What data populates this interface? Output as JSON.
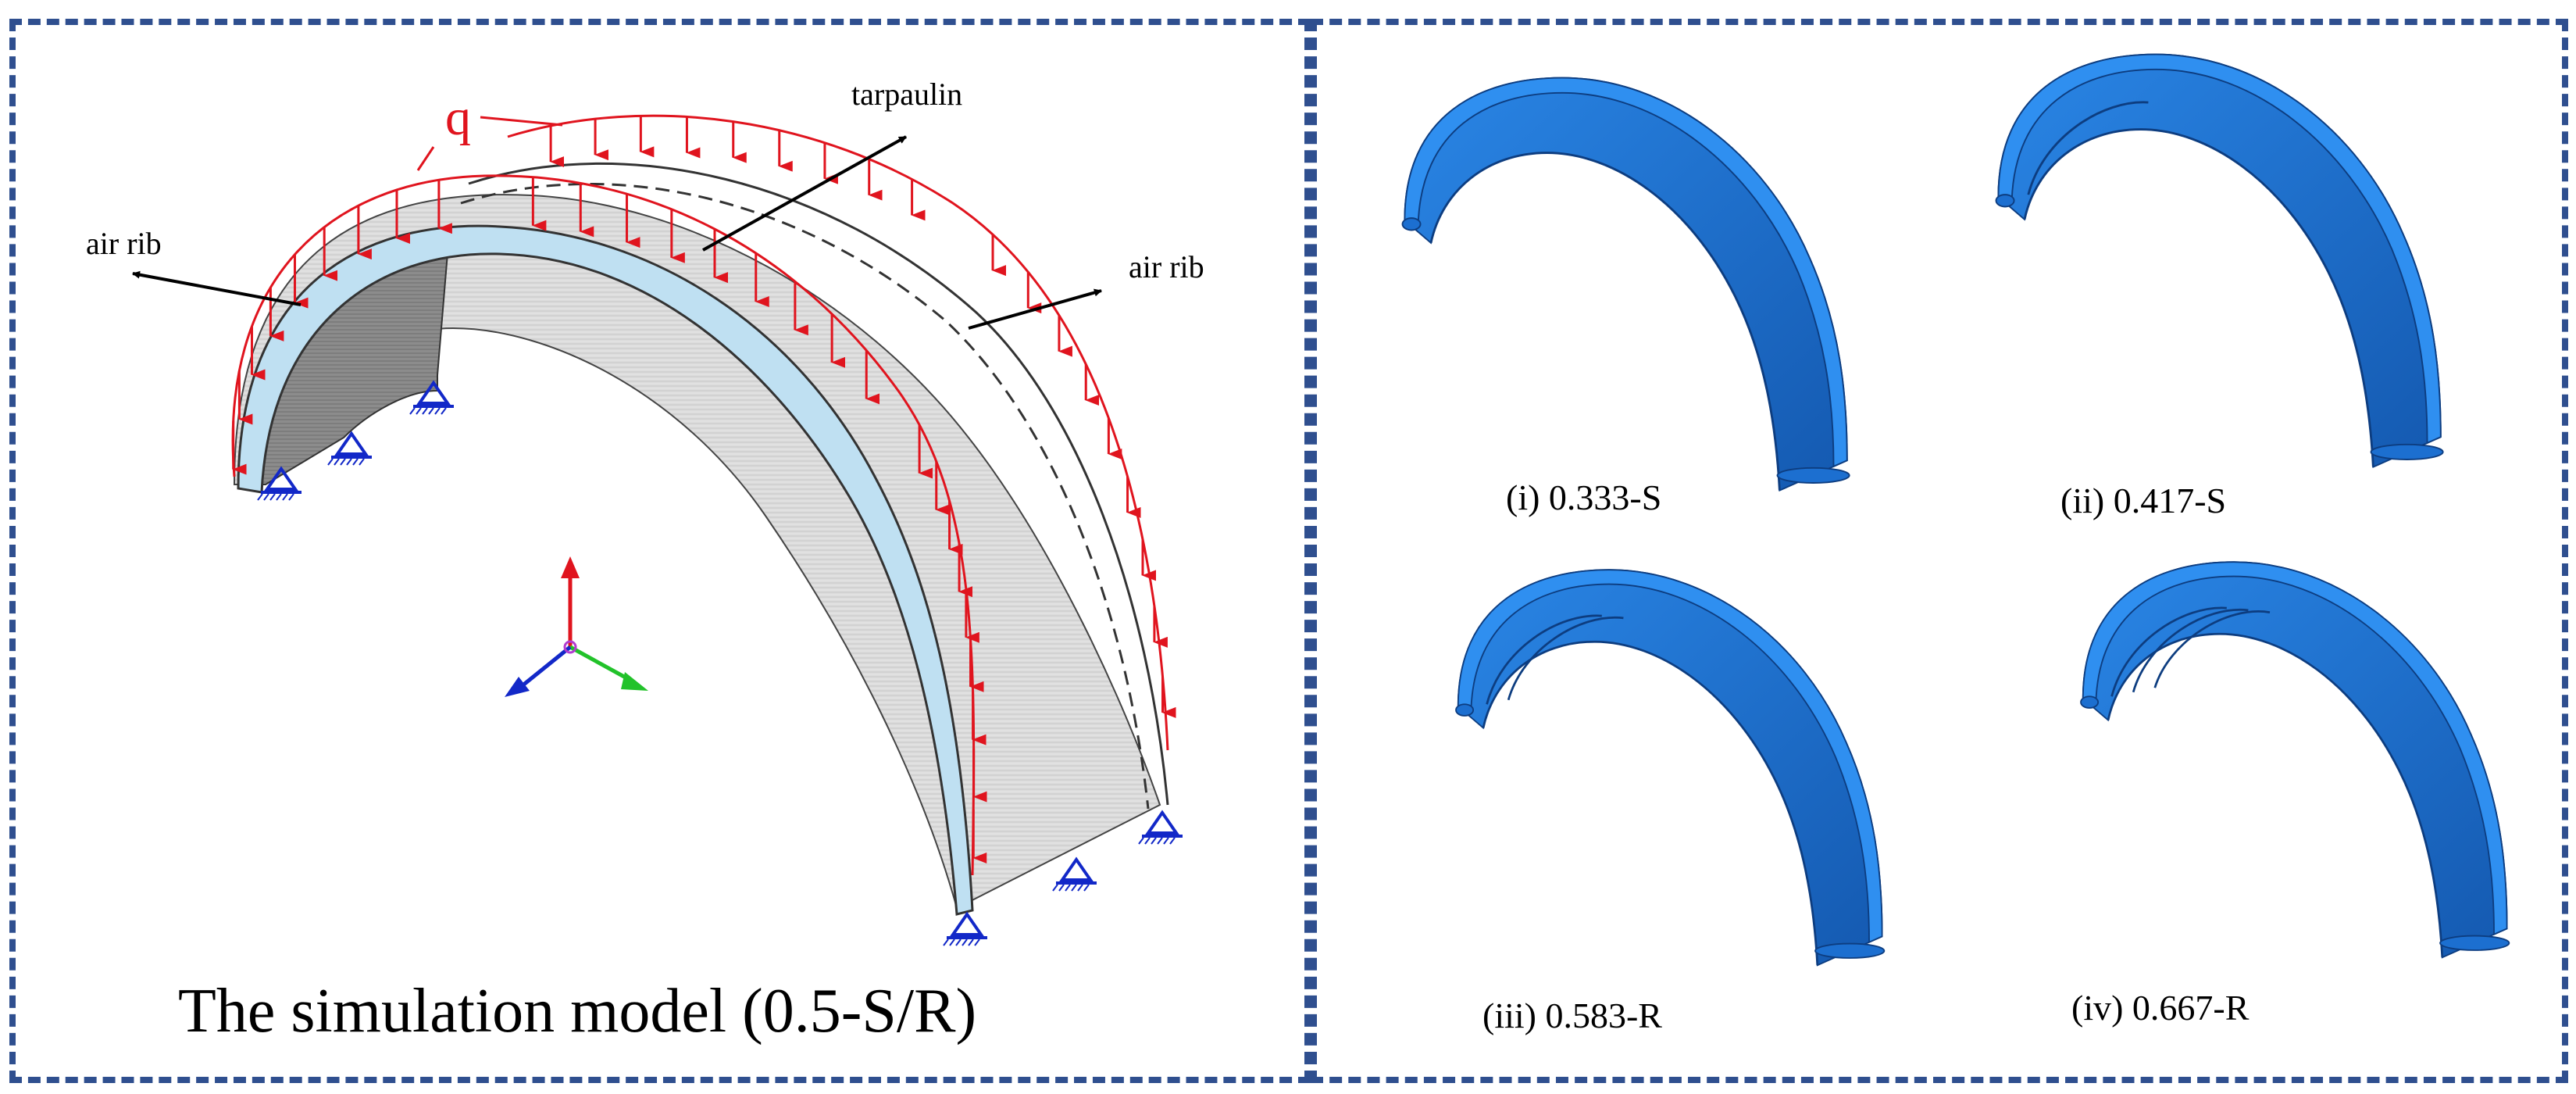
{
  "left_panel": {
    "caption": "The simulation model (0.5-S/R)",
    "labels": {
      "load": "q",
      "tarpaulin": "tarpaulin",
      "air_rib_left": "air rib",
      "air_rib_right": "air rib"
    }
  },
  "right_panel": {
    "variants": [
      {
        "label": "(i) 0.333-S"
      },
      {
        "label": "(ii) 0.417-S"
      },
      {
        "label": "(iii) 0.583-R"
      },
      {
        "label": "(iv) 0.667-R"
      }
    ]
  },
  "colors": {
    "border": "#2f4f8f",
    "load_arrow": "#e0141e",
    "air_rib_fill": "#bfe0f2",
    "tarpaulin_fill": "#d9d9d9",
    "support": "#1228c8",
    "model_blue": "#1a73d8"
  }
}
